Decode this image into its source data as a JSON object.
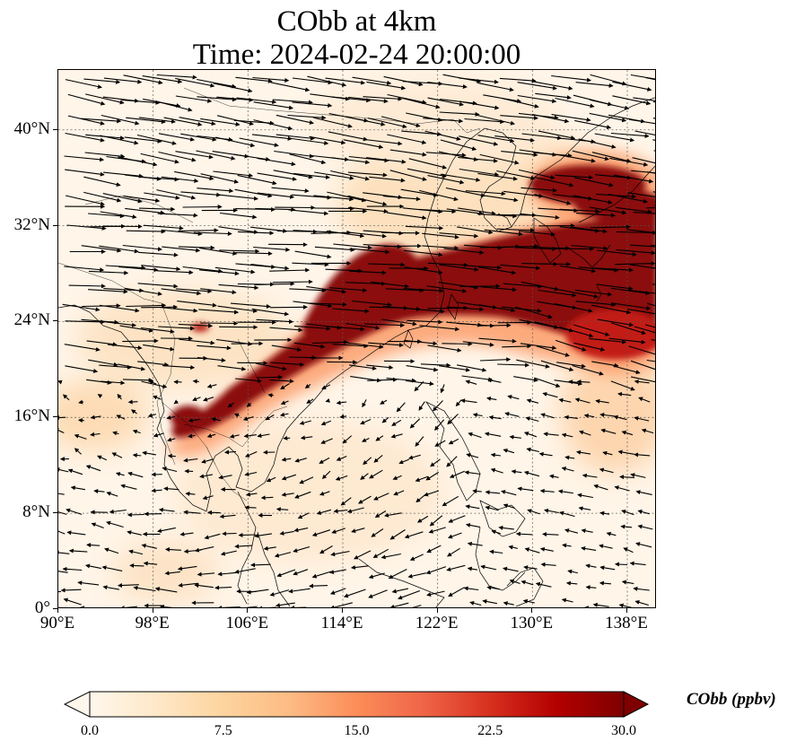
{
  "figure": {
    "title_line1": "CObb at 4km",
    "title_line2": "Time: 2024-02-24 20:00:00"
  },
  "map": {
    "type": "filled-contour-with-wind-vectors",
    "extent": {
      "lon": [
        90,
        140.5
      ],
      "lat": [
        0,
        45
      ]
    },
    "gridlines": true,
    "coastlines": true,
    "borders": true,
    "lat_ticks": [
      "40°N",
      "32°N",
      "24°N",
      "16°N",
      "8°N",
      "0°"
    ],
    "lat_values": [
      40,
      32,
      24,
      16,
      8,
      0
    ],
    "lon_ticks": [
      "90°E",
      "98°E",
      "106°E",
      "114°E",
      "122°E",
      "130°E",
      "138°E"
    ],
    "lon_values": [
      90,
      98,
      106,
      114,
      122,
      130,
      138
    ]
  },
  "colorbar": {
    "label": "CObb (ppbv)",
    "min": 0,
    "max": 30,
    "extend": "both",
    "tick_labels": [
      "0.0",
      "7.5",
      "15.0",
      "22.5",
      "30.0"
    ],
    "tick_values": [
      0,
      7.5,
      15,
      22.5,
      30
    ],
    "colormap": "OrRd",
    "colors": [
      "#fff7ec",
      "#fee8c8",
      "#fdd49e",
      "#fdbb84",
      "#fc8d59",
      "#ef6548",
      "#d7301f",
      "#b30000",
      "#7f0000"
    ]
  },
  "chart_data": {
    "type": "heatmap",
    "variable": "CObb",
    "units": "ppbv",
    "level": "4km",
    "time": "2024-02-24 20:00:00",
    "plume_core": [
      {
        "lon": 100.5,
        "lat": 14.5,
        "value": 28
      },
      {
        "lon": 103,
        "lat": 16.5,
        "value": 30
      },
      {
        "lon": 106,
        "lat": 18.5,
        "value": 27
      },
      {
        "lon": 109,
        "lat": 20.5,
        "value": 30
      },
      {
        "lon": 113,
        "lat": 23,
        "value": 30
      },
      {
        "lon": 117,
        "lat": 26,
        "value": 30
      },
      {
        "lon": 122,
        "lat": 28,
        "value": 30
      },
      {
        "lon": 127,
        "lat": 30,
        "value": 30
      },
      {
        "lon": 132,
        "lat": 31,
        "value": 30
      },
      {
        "lon": 136,
        "lat": 30,
        "value": 30
      },
      {
        "lon": 133,
        "lat": 35.5,
        "value": 30
      },
      {
        "lon": 137,
        "lat": 23.5,
        "value": 24
      }
    ],
    "wind": {
      "description": "westerly flow north of ~18°N, weaker anticyclonic/easterly flow over South China Sea",
      "dominant_direction_north": "from west",
      "dominant_direction_south": "from east/northeast"
    }
  }
}
